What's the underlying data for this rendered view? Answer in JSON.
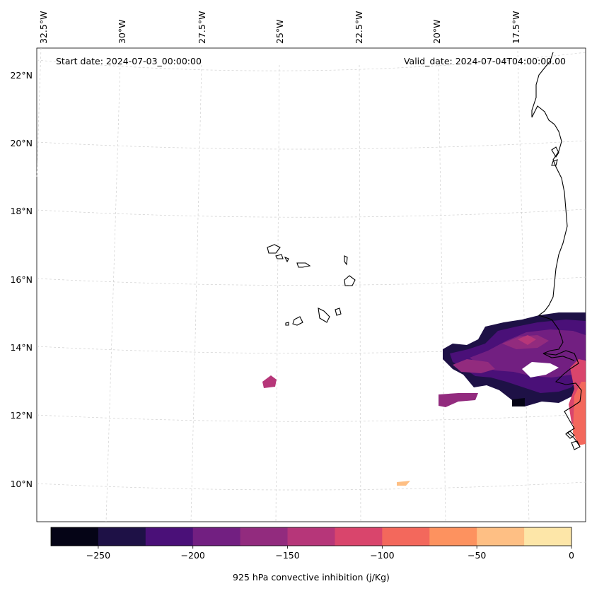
{
  "map": {
    "start_date": "Start date: 2024-07-03_00:00:00",
    "valid_date": "Valid_date: 2024-07-04T04:00:00.00",
    "lon_labels": [
      "32.5°W",
      "30°W",
      "27.5°W",
      "25°W",
      "22.5°W",
      "20°W",
      "17.5°W"
    ],
    "lat_labels": [
      "22°N",
      "20°N",
      "18°N",
      "16°N",
      "14°N",
      "12°N",
      "10°N"
    ],
    "features": [
      "west-africa-coastline",
      "cape-verde-islands",
      "cin-field"
    ]
  },
  "colorbar": {
    "label": "925 hPa convective inhibition (j/Kg)",
    "ticks": [
      "−250",
      "−200",
      "−150",
      "−100",
      "−50",
      "0"
    ],
    "bins": [
      {
        "from": -275,
        "to": -250,
        "color": "#050416"
      },
      {
        "from": -250,
        "to": -225,
        "color": "#1e1146"
      },
      {
        "from": -225,
        "to": -200,
        "color": "#4a1078"
      },
      {
        "from": -200,
        "to": -175,
        "color": "#721f81"
      },
      {
        "from": -175,
        "to": -150,
        "color": "#922b7e"
      },
      {
        "from": -150,
        "to": -125,
        "color": "#b63679"
      },
      {
        "from": -125,
        "to": -100,
        "color": "#d9456c"
      },
      {
        "from": -100,
        "to": -75,
        "color": "#f3685c"
      },
      {
        "from": -75,
        "to": -50,
        "color": "#fd925f"
      },
      {
        "from": -50,
        "to": -25,
        "color": "#febf84"
      },
      {
        "from": -25,
        "to": 0,
        "color": "#fde6a8"
      }
    ]
  }
}
